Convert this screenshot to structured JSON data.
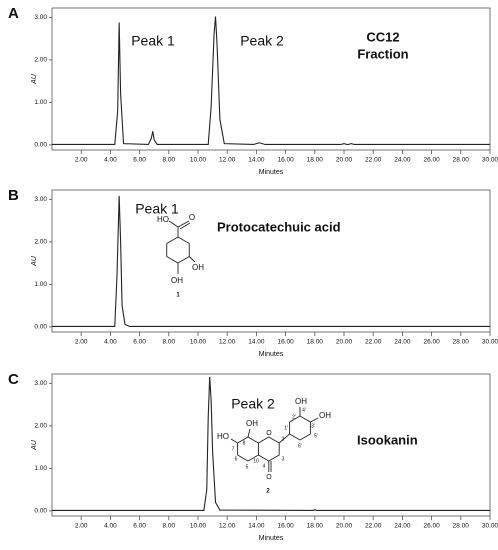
{
  "chart_data": [
    {
      "type": "line",
      "panel": "A",
      "color": "#222222",
      "x": [
        0,
        4.3,
        4.5,
        4.6,
        4.7,
        4.9,
        6.6,
        6.8,
        6.9,
        7.0,
        7.2,
        10.7,
        10.9,
        11.1,
        11.2,
        11.3,
        11.5,
        11.8,
        13.8,
        14.2,
        14.6,
        19.8,
        20.0,
        20.2,
        20.3,
        20.5,
        20.7,
        30
      ],
      "values": [
        0.01,
        0.01,
        0.8,
        2.88,
        1.2,
        0.03,
        0.01,
        0.15,
        0.32,
        0.12,
        0.01,
        0.01,
        0.9,
        2.6,
        3.02,
        2.4,
        0.6,
        0.03,
        0.01,
        0.05,
        0.01,
        0.01,
        0.03,
        0.01,
        0.01,
        0.03,
        0.01,
        0.01
      ],
      "xlim": [
        0,
        30
      ],
      "ylim": [
        -0.12,
        3.22
      ],
      "xticks": [
        {
          "value": 2,
          "label": "2.00"
        },
        {
          "value": 4,
          "label": "4.00"
        },
        {
          "value": 6,
          "label": "6.00"
        },
        {
          "value": 8,
          "label": "8.00"
        },
        {
          "value": 10,
          "label": "10.00"
        },
        {
          "value": 12,
          "label": "12.00"
        },
        {
          "value": 14,
          "label": "14.00"
        },
        {
          "value": 16,
          "label": "16.00"
        },
        {
          "value": 18,
          "label": "18.00"
        },
        {
          "value": 20,
          "label": "20.00"
        },
        {
          "value": 22,
          "label": "22.00"
        },
        {
          "value": 24,
          "label": "24.00"
        },
        {
          "value": 26,
          "label": "26.00"
        },
        {
          "value": 28,
          "label": "28.00"
        },
        {
          "value": 30,
          "label": "30.00"
        }
      ],
      "yticks": [
        {
          "value": 0,
          "label": "0.00"
        },
        {
          "value": 1,
          "label": "1.00"
        },
        {
          "value": 2,
          "label": "2.00"
        },
        {
          "value": 3,
          "label": "3.00"
        }
      ],
      "xlabel": "Minutes",
      "ylabel": "AU",
      "annotations": [
        "Peak 1",
        "Peak 2",
        "CC12",
        "Fraction"
      ],
      "structure_labels": []
    },
    {
      "type": "line",
      "panel": "B",
      "color": "#222222",
      "x": [
        0,
        4.3,
        4.45,
        4.6,
        4.7,
        4.8,
        5.0,
        5.3,
        30
      ],
      "values": [
        0.01,
        0.01,
        1.2,
        3.08,
        2.0,
        0.5,
        0.06,
        0.01,
        0.01
      ],
      "xlim": [
        0,
        30
      ],
      "ylim": [
        -0.12,
        3.22
      ],
      "xticks": [
        {
          "value": 2,
          "label": "2.00"
        },
        {
          "value": 4,
          "label": "4.00"
        },
        {
          "value": 6,
          "label": "6.00"
        },
        {
          "value": 8,
          "label": "8.00"
        },
        {
          "value": 10,
          "label": "10.00"
        },
        {
          "value": 12,
          "label": "12.00"
        },
        {
          "value": 14,
          "label": "14.00"
        },
        {
          "value": 16,
          "label": "16.00"
        },
        {
          "value": 18,
          "label": "18.00"
        },
        {
          "value": 20,
          "label": "20.00"
        },
        {
          "value": 22,
          "label": "22.00"
        },
        {
          "value": 24,
          "label": "24.00"
        },
        {
          "value": 26,
          "label": "26.00"
        },
        {
          "value": 28,
          "label": "28.00"
        },
        {
          "value": 30,
          "label": "30.00"
        }
      ],
      "yticks": [
        {
          "value": 0,
          "label": "0.00"
        },
        {
          "value": 1,
          "label": "1.00"
        },
        {
          "value": 2,
          "label": "2.00"
        },
        {
          "value": 3,
          "label": "3.00"
        }
      ],
      "xlabel": "Minutes",
      "ylabel": "AU",
      "annotations": [
        "Peak 1",
        "Protocatechuic acid"
      ],
      "structure_labels": [
        "HO",
        "O",
        "OH",
        "OH",
        "1"
      ]
    },
    {
      "type": "line",
      "panel": "C",
      "color": "#222222",
      "x": [
        0,
        10.4,
        10.6,
        10.7,
        10.8,
        10.9,
        11.0,
        11.2,
        11.5,
        17.9,
        18.0,
        18.1,
        30
      ],
      "values": [
        0.01,
        0.01,
        0.5,
        2.2,
        3.15,
        2.6,
        1.4,
        0.2,
        0.02,
        0.01,
        0.03,
        0.01,
        0.01
      ],
      "xlim": [
        0,
        30
      ],
      "ylim": [
        -0.12,
        3.22
      ],
      "xticks": [
        {
          "value": 2,
          "label": "2.00"
        },
        {
          "value": 4,
          "label": "4.00"
        },
        {
          "value": 6,
          "label": "6.00"
        },
        {
          "value": 8,
          "label": "8.00"
        },
        {
          "value": 10,
          "label": "10.00"
        },
        {
          "value": 12,
          "label": "12.00"
        },
        {
          "value": 14,
          "label": "14.00"
        },
        {
          "value": 16,
          "label": "16.00"
        },
        {
          "value": 18,
          "label": "18.00"
        },
        {
          "value": 20,
          "label": "20.00"
        },
        {
          "value": 22,
          "label": "22.00"
        },
        {
          "value": 24,
          "label": "24.00"
        },
        {
          "value": 26,
          "label": "26.00"
        },
        {
          "value": 28,
          "label": "28.00"
        },
        {
          "value": 30,
          "label": "30.00"
        }
      ],
      "yticks": [
        {
          "value": 0,
          "label": "0.00"
        },
        {
          "value": 1,
          "label": "1.00"
        },
        {
          "value": 2,
          "label": "2.00"
        },
        {
          "value": 3,
          "label": "3.00"
        }
      ],
      "xlabel": "Minutes",
      "ylabel": "AU",
      "annotations": [
        "Peak 2",
        "Isookanin"
      ],
      "structure_labels": [
        "HO",
        "OH",
        "O",
        "O",
        "OH",
        "OH",
        "8",
        "7",
        "6",
        "5",
        "10",
        "4",
        "3",
        "2",
        "2'",
        "3'",
        "4'",
        "5'",
        "6'",
        "1'",
        "2"
      ]
    }
  ]
}
